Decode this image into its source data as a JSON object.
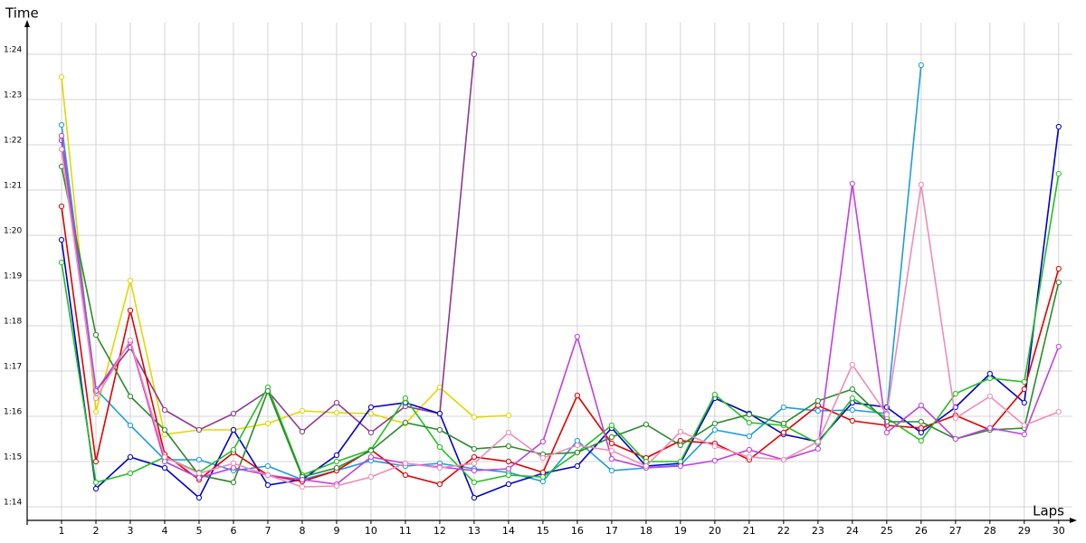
{
  "chart_data": {
    "type": "line",
    "y_label": "Time",
    "x_label": "Laps",
    "x": [
      1,
      2,
      3,
      4,
      5,
      6,
      7,
      8,
      9,
      10,
      11,
      12,
      13,
      14,
      15,
      16,
      17,
      18,
      19,
      20,
      21,
      22,
      23,
      24,
      25,
      26,
      27,
      28,
      29,
      30
    ],
    "xlim": [
      0,
      30.4
    ],
    "xticks": [
      1,
      2,
      3,
      4,
      5,
      6,
      7,
      8,
      9,
      10,
      11,
      12,
      13,
      14,
      15,
      16,
      17,
      18,
      19,
      20,
      21,
      22,
      23,
      24,
      25,
      26,
      27,
      28,
      29,
      30
    ],
    "ylim": [
      73.7,
      84.7
    ],
    "yticks": [
      {
        "value": 74,
        "label": "1:14"
      },
      {
        "value": 75,
        "label": "1:15"
      },
      {
        "value": 76,
        "label": "1:16"
      },
      {
        "value": 77,
        "label": "1:17"
      },
      {
        "value": 78,
        "label": "1:18"
      },
      {
        "value": 79,
        "label": "1:19"
      },
      {
        "value": 80,
        "label": "1:20"
      },
      {
        "value": 81,
        "label": "1:21"
      },
      {
        "value": 82,
        "label": "1:22"
      },
      {
        "value": 83,
        "label": "1:23"
      },
      {
        "value": 84,
        "label": "1:24"
      }
    ],
    "grid": true,
    "series": [
      {
        "color": "#e0d800",
        "values": [
          83.5,
          76.1,
          79.0,
          75.6,
          75.7,
          75.7,
          75.84,
          76.12,
          76.08,
          76.06,
          75.84,
          76.64,
          75.98,
          76.02,
          null,
          null,
          null,
          null,
          null,
          null,
          null,
          null,
          null,
          null,
          null,
          null,
          null,
          null,
          null,
          null
        ]
      },
      {
        "color": "#8e3a8e",
        "values": [
          82.1,
          76.56,
          77.52,
          76.14,
          75.7,
          76.06,
          76.56,
          75.66,
          76.3,
          75.64,
          76.22,
          76.06,
          84.0,
          null,
          null,
          null,
          null,
          null,
          null,
          null,
          null,
          null,
          null,
          null,
          null,
          null,
          null,
          null,
          null,
          null
        ]
      },
      {
        "color": "#1e9be0",
        "values": [
          82.44,
          76.6,
          75.8,
          75.04,
          75.04,
          74.8,
          74.9,
          74.6,
          74.8,
          75.02,
          74.9,
          74.96,
          74.84,
          74.76,
          74.56,
          75.46,
          74.8,
          74.86,
          74.92,
          75.7,
          75.56,
          76.2,
          76.12,
          76.14,
          76.06,
          83.76,
          null,
          null,
          null,
          null
        ]
      },
      {
        "color": "#0000cc",
        "values": [
          79.9,
          74.4,
          75.1,
          74.86,
          74.2,
          75.7,
          74.48,
          74.6,
          75.14,
          76.2,
          76.3,
          76.06,
          74.2,
          74.5,
          74.74,
          74.9,
          75.74,
          74.9,
          74.96,
          76.4,
          76.06,
          75.6,
          75.44,
          76.3,
          76.2,
          75.64,
          76.2,
          76.94,
          76.3,
          82.4
        ]
      },
      {
        "color": "#e00000",
        "values": [
          80.64,
          75.0,
          78.34,
          75.16,
          74.6,
          75.2,
          74.7,
          74.56,
          74.8,
          75.26,
          74.7,
          74.5,
          75.1,
          75.0,
          74.76,
          76.46,
          75.4,
          75.08,
          75.46,
          75.4,
          75.04,
          75.64,
          76.24,
          75.9,
          75.8,
          75.74,
          76.02,
          75.7,
          76.6,
          79.26
        ]
      },
      {
        "color": "#22c020",
        "values": [
          79.4,
          74.54,
          74.74,
          75.1,
          74.76,
          75.26,
          76.64,
          74.7,
          75.0,
          75.26,
          76.4,
          75.32,
          74.54,
          74.7,
          74.66,
          75.2,
          75.8,
          75.0,
          75.0,
          76.48,
          75.86,
          75.8,
          75.4,
          76.4,
          75.96,
          75.46,
          76.5,
          76.84,
          76.76,
          81.36
        ]
      },
      {
        "color": "#2a8a2a",
        "values": [
          81.52,
          77.8,
          76.44,
          75.7,
          74.7,
          74.54,
          76.56,
          74.66,
          74.86,
          75.24,
          75.86,
          75.7,
          75.28,
          75.34,
          75.16,
          75.2,
          75.54,
          75.82,
          75.36,
          75.84,
          76.04,
          75.84,
          76.34,
          76.6,
          75.88,
          75.88,
          75.5,
          75.7,
          75.74,
          78.96
        ]
      },
      {
        "color": "#c040e0",
        "values": [
          82.2,
          76.56,
          77.64,
          75.0,
          74.64,
          74.86,
          74.7,
          74.6,
          74.5,
          75.1,
          74.96,
          74.88,
          74.8,
          74.84,
          75.44,
          77.76,
          75.06,
          74.86,
          74.9,
          75.02,
          75.26,
          75.04,
          75.28,
          81.14,
          75.64,
          76.24,
          75.5,
          75.74,
          75.6,
          77.54
        ]
      },
      {
        "color": "#f08cb8",
        "values": [
          81.9,
          76.4,
          77.68,
          75.1,
          74.74,
          74.96,
          74.7,
          74.44,
          74.46,
          74.66,
          74.96,
          74.86,
          74.96,
          75.64,
          75.08,
          75.36,
          75.24,
          74.9,
          75.66,
          75.34,
          75.1,
          75.04,
          75.44,
          77.14,
          76.04,
          81.12,
          75.96,
          76.44,
          75.8,
          76.1
        ]
      }
    ]
  }
}
